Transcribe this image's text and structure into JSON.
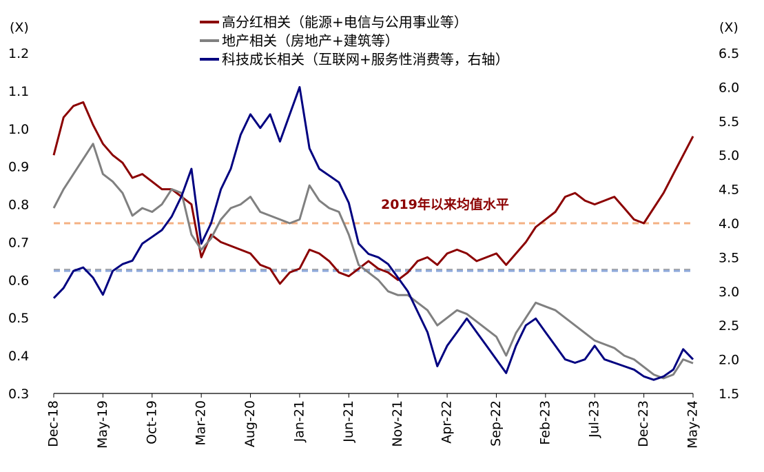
{
  "chart_data": {
    "type": "line",
    "left_axis": {
      "unit_label": "(X)",
      "ylim": [
        0.3,
        1.2
      ],
      "ticks": [
        "0.3",
        "0.4",
        "0.5",
        "0.6",
        "0.7",
        "0.8",
        "0.9",
        "1.0",
        "1.1",
        "1.2"
      ]
    },
    "right_axis": {
      "unit_label": "(X)",
      "ylim": [
        1.5,
        6.5
      ],
      "ticks": [
        "1.5",
        "2.0",
        "2.5",
        "3.0",
        "3.5",
        "4.0",
        "4.5",
        "5.0",
        "5.5",
        "6.0",
        "6.5"
      ]
    },
    "x_axis": {
      "range": [
        "2018-12",
        "2024-05"
      ],
      "ticks": [
        "Dec-18",
        "May-19",
        "Oct-19",
        "Mar-20",
        "Aug-20",
        "Jan-21",
        "Jun-21",
        "Nov-21",
        "Apr-22",
        "Sep-22",
        "Feb-23",
        "Jul-23",
        "Dec-23",
        "May-24"
      ]
    },
    "legend": {
      "placement": "top-center",
      "entries": [
        "高分红相关（能源+电信与公用事业等）",
        "地产相关（房地产+建筑等）",
        "科技成长相关（互联网+服务性消费等，右轴）"
      ]
    },
    "annotation": "2019年以来均值水平",
    "mean_lines": [
      {
        "series": "高分红相关（能源+电信与公用事业等）",
        "axis": "left",
        "value": 0.75,
        "color": "#f4b183"
      },
      {
        "series": "地产相关（房地产+建筑等）",
        "axis": "left",
        "value": 0.627,
        "color": "#a6a6a6"
      },
      {
        "series": "科技成长相关（互联网+服务性消费等，右轴）",
        "axis": "right",
        "value": 3.3,
        "color": "#8faadc"
      }
    ],
    "series": [
      {
        "name": "高分红相关（能源+电信与公用事业等）",
        "axis": "left",
        "color": "#8b0000",
        "points": [
          [
            "2018-12",
            0.93
          ],
          [
            "2019-01",
            1.03
          ],
          [
            "2019-02",
            1.06
          ],
          [
            "2019-03",
            1.07
          ],
          [
            "2019-04",
            1.01
          ],
          [
            "2019-05",
            0.96
          ],
          [
            "2019-06",
            0.93
          ],
          [
            "2019-07",
            0.91
          ],
          [
            "2019-08",
            0.87
          ],
          [
            "2019-09",
            0.88
          ],
          [
            "2019-10",
            0.86
          ],
          [
            "2019-11",
            0.84
          ],
          [
            "2019-12",
            0.84
          ],
          [
            "2020-01",
            0.82
          ],
          [
            "2020-02",
            0.8
          ],
          [
            "2020-03",
            0.66
          ],
          [
            "2020-04",
            0.72
          ],
          [
            "2020-05",
            0.7
          ],
          [
            "2020-06",
            0.69
          ],
          [
            "2020-07",
            0.68
          ],
          [
            "2020-08",
            0.67
          ],
          [
            "2020-09",
            0.64
          ],
          [
            "2020-10",
            0.63
          ],
          [
            "2020-11",
            0.59
          ],
          [
            "2020-12",
            0.62
          ],
          [
            "2021-01",
            0.63
          ],
          [
            "2021-02",
            0.68
          ],
          [
            "2021-03",
            0.67
          ],
          [
            "2021-04",
            0.65
          ],
          [
            "2021-05",
            0.62
          ],
          [
            "2021-06",
            0.61
          ],
          [
            "2021-07",
            0.63
          ],
          [
            "2021-08",
            0.65
          ],
          [
            "2021-09",
            0.63
          ],
          [
            "2021-10",
            0.62
          ],
          [
            "2021-11",
            0.6
          ],
          [
            "2021-12",
            0.62
          ],
          [
            "2022-01",
            0.65
          ],
          [
            "2022-02",
            0.66
          ],
          [
            "2022-03",
            0.64
          ],
          [
            "2022-04",
            0.67
          ],
          [
            "2022-05",
            0.68
          ],
          [
            "2022-06",
            0.67
          ],
          [
            "2022-07",
            0.65
          ],
          [
            "2022-08",
            0.66
          ],
          [
            "2022-09",
            0.67
          ],
          [
            "2022-10",
            0.64
          ],
          [
            "2022-11",
            0.67
          ],
          [
            "2022-12",
            0.7
          ],
          [
            "2023-01",
            0.74
          ],
          [
            "2023-02",
            0.76
          ],
          [
            "2023-03",
            0.78
          ],
          [
            "2023-04",
            0.82
          ],
          [
            "2023-05",
            0.83
          ],
          [
            "2023-06",
            0.81
          ],
          [
            "2023-07",
            0.8
          ],
          [
            "2023-08",
            0.81
          ],
          [
            "2023-09",
            0.82
          ],
          [
            "2023-10",
            0.79
          ],
          [
            "2023-11",
            0.76
          ],
          [
            "2023-12",
            0.75
          ],
          [
            "2024-01",
            0.79
          ],
          [
            "2024-02",
            0.83
          ],
          [
            "2024-03",
            0.88
          ],
          [
            "2024-04",
            0.93
          ],
          [
            "2024-05",
            0.98
          ]
        ]
      },
      {
        "name": "地产相关（房地产+建筑等）",
        "axis": "left",
        "color": "#808080",
        "points": [
          [
            "2018-12",
            0.79
          ],
          [
            "2019-01",
            0.84
          ],
          [
            "2019-02",
            0.88
          ],
          [
            "2019-03",
            0.92
          ],
          [
            "2019-04",
            0.96
          ],
          [
            "2019-05",
            0.88
          ],
          [
            "2019-06",
            0.86
          ],
          [
            "2019-07",
            0.83
          ],
          [
            "2019-08",
            0.77
          ],
          [
            "2019-09",
            0.79
          ],
          [
            "2019-10",
            0.78
          ],
          [
            "2019-11",
            0.8
          ],
          [
            "2019-12",
            0.84
          ],
          [
            "2020-01",
            0.83
          ],
          [
            "2020-02",
            0.72
          ],
          [
            "2020-03",
            0.68
          ],
          [
            "2020-04",
            0.71
          ],
          [
            "2020-05",
            0.76
          ],
          [
            "2020-06",
            0.79
          ],
          [
            "2020-07",
            0.8
          ],
          [
            "2020-08",
            0.82
          ],
          [
            "2020-09",
            0.78
          ],
          [
            "2020-10",
            0.77
          ],
          [
            "2020-11",
            0.76
          ],
          [
            "2020-12",
            0.75
          ],
          [
            "2021-01",
            0.76
          ],
          [
            "2021-02",
            0.85
          ],
          [
            "2021-03",
            0.81
          ],
          [
            "2021-04",
            0.79
          ],
          [
            "2021-05",
            0.78
          ],
          [
            "2021-06",
            0.72
          ],
          [
            "2021-07",
            0.64
          ],
          [
            "2021-08",
            0.62
          ],
          [
            "2021-09",
            0.6
          ],
          [
            "2021-10",
            0.57
          ],
          [
            "2021-11",
            0.56
          ],
          [
            "2021-12",
            0.56
          ],
          [
            "2022-01",
            0.54
          ],
          [
            "2022-02",
            0.52
          ],
          [
            "2022-03",
            0.48
          ],
          [
            "2022-04",
            0.5
          ],
          [
            "2022-05",
            0.52
          ],
          [
            "2022-06",
            0.51
          ],
          [
            "2022-07",
            0.49
          ],
          [
            "2022-08",
            0.47
          ],
          [
            "2022-09",
            0.45
          ],
          [
            "2022-10",
            0.4
          ],
          [
            "2022-11",
            0.46
          ],
          [
            "2022-12",
            0.5
          ],
          [
            "2023-01",
            0.54
          ],
          [
            "2023-02",
            0.53
          ],
          [
            "2023-03",
            0.52
          ],
          [
            "2023-04",
            0.5
          ],
          [
            "2023-05",
            0.48
          ],
          [
            "2023-06",
            0.46
          ],
          [
            "2023-07",
            0.44
          ],
          [
            "2023-08",
            0.43
          ],
          [
            "2023-09",
            0.42
          ],
          [
            "2023-10",
            0.4
          ],
          [
            "2023-11",
            0.39
          ],
          [
            "2023-12",
            0.37
          ],
          [
            "2024-01",
            0.35
          ],
          [
            "2024-02",
            0.34
          ],
          [
            "2024-03",
            0.35
          ],
          [
            "2024-04",
            0.39
          ],
          [
            "2024-05",
            0.38
          ]
        ]
      },
      {
        "name": "科技成长相关（互联网+服务性消费等，右轴）",
        "axis": "right",
        "color": "#000080",
        "points": [
          [
            "2018-12",
            2.9
          ],
          [
            "2019-01",
            3.05
          ],
          [
            "2019-02",
            3.3
          ],
          [
            "2019-03",
            3.35
          ],
          [
            "2019-04",
            3.2
          ],
          [
            "2019-05",
            2.95
          ],
          [
            "2019-06",
            3.3
          ],
          [
            "2019-07",
            3.4
          ],
          [
            "2019-08",
            3.45
          ],
          [
            "2019-09",
            3.7
          ],
          [
            "2019-10",
            3.8
          ],
          [
            "2019-11",
            3.9
          ],
          [
            "2019-12",
            4.1
          ],
          [
            "2020-01",
            4.4
          ],
          [
            "2020-02",
            4.8
          ],
          [
            "2020-03",
            3.7
          ],
          [
            "2020-04",
            4.0
          ],
          [
            "2020-05",
            4.5
          ],
          [
            "2020-06",
            4.8
          ],
          [
            "2020-07",
            5.3
          ],
          [
            "2020-08",
            5.6
          ],
          [
            "2020-09",
            5.4
          ],
          [
            "2020-10",
            5.6
          ],
          [
            "2020-11",
            5.2
          ],
          [
            "2020-12",
            5.6
          ],
          [
            "2021-01",
            6.0
          ],
          [
            "2021-02",
            5.1
          ],
          [
            "2021-03",
            4.8
          ],
          [
            "2021-04",
            4.7
          ],
          [
            "2021-05",
            4.6
          ],
          [
            "2021-06",
            4.3
          ],
          [
            "2021-07",
            3.7
          ],
          [
            "2021-08",
            3.55
          ],
          [
            "2021-09",
            3.5
          ],
          [
            "2021-10",
            3.4
          ],
          [
            "2021-11",
            3.2
          ],
          [
            "2021-12",
            3.0
          ],
          [
            "2022-01",
            2.7
          ],
          [
            "2022-02",
            2.4
          ],
          [
            "2022-03",
            1.9
          ],
          [
            "2022-04",
            2.2
          ],
          [
            "2022-05",
            2.4
          ],
          [
            "2022-06",
            2.6
          ],
          [
            "2022-07",
            2.4
          ],
          [
            "2022-08",
            2.2
          ],
          [
            "2022-09",
            2.0
          ],
          [
            "2022-10",
            1.8
          ],
          [
            "2022-11",
            2.2
          ],
          [
            "2022-12",
            2.5
          ],
          [
            "2023-01",
            2.6
          ],
          [
            "2023-02",
            2.4
          ],
          [
            "2023-03",
            2.2
          ],
          [
            "2023-04",
            2.0
          ],
          [
            "2023-05",
            1.95
          ],
          [
            "2023-06",
            2.0
          ],
          [
            "2023-07",
            2.2
          ],
          [
            "2023-08",
            2.0
          ],
          [
            "2023-09",
            1.95
          ],
          [
            "2023-10",
            1.9
          ],
          [
            "2023-11",
            1.85
          ],
          [
            "2023-12",
            1.75
          ],
          [
            "2024-01",
            1.7
          ],
          [
            "2024-02",
            1.75
          ],
          [
            "2024-03",
            1.85
          ],
          [
            "2024-04",
            2.15
          ],
          [
            "2024-05",
            2.0
          ]
        ]
      }
    ]
  }
}
